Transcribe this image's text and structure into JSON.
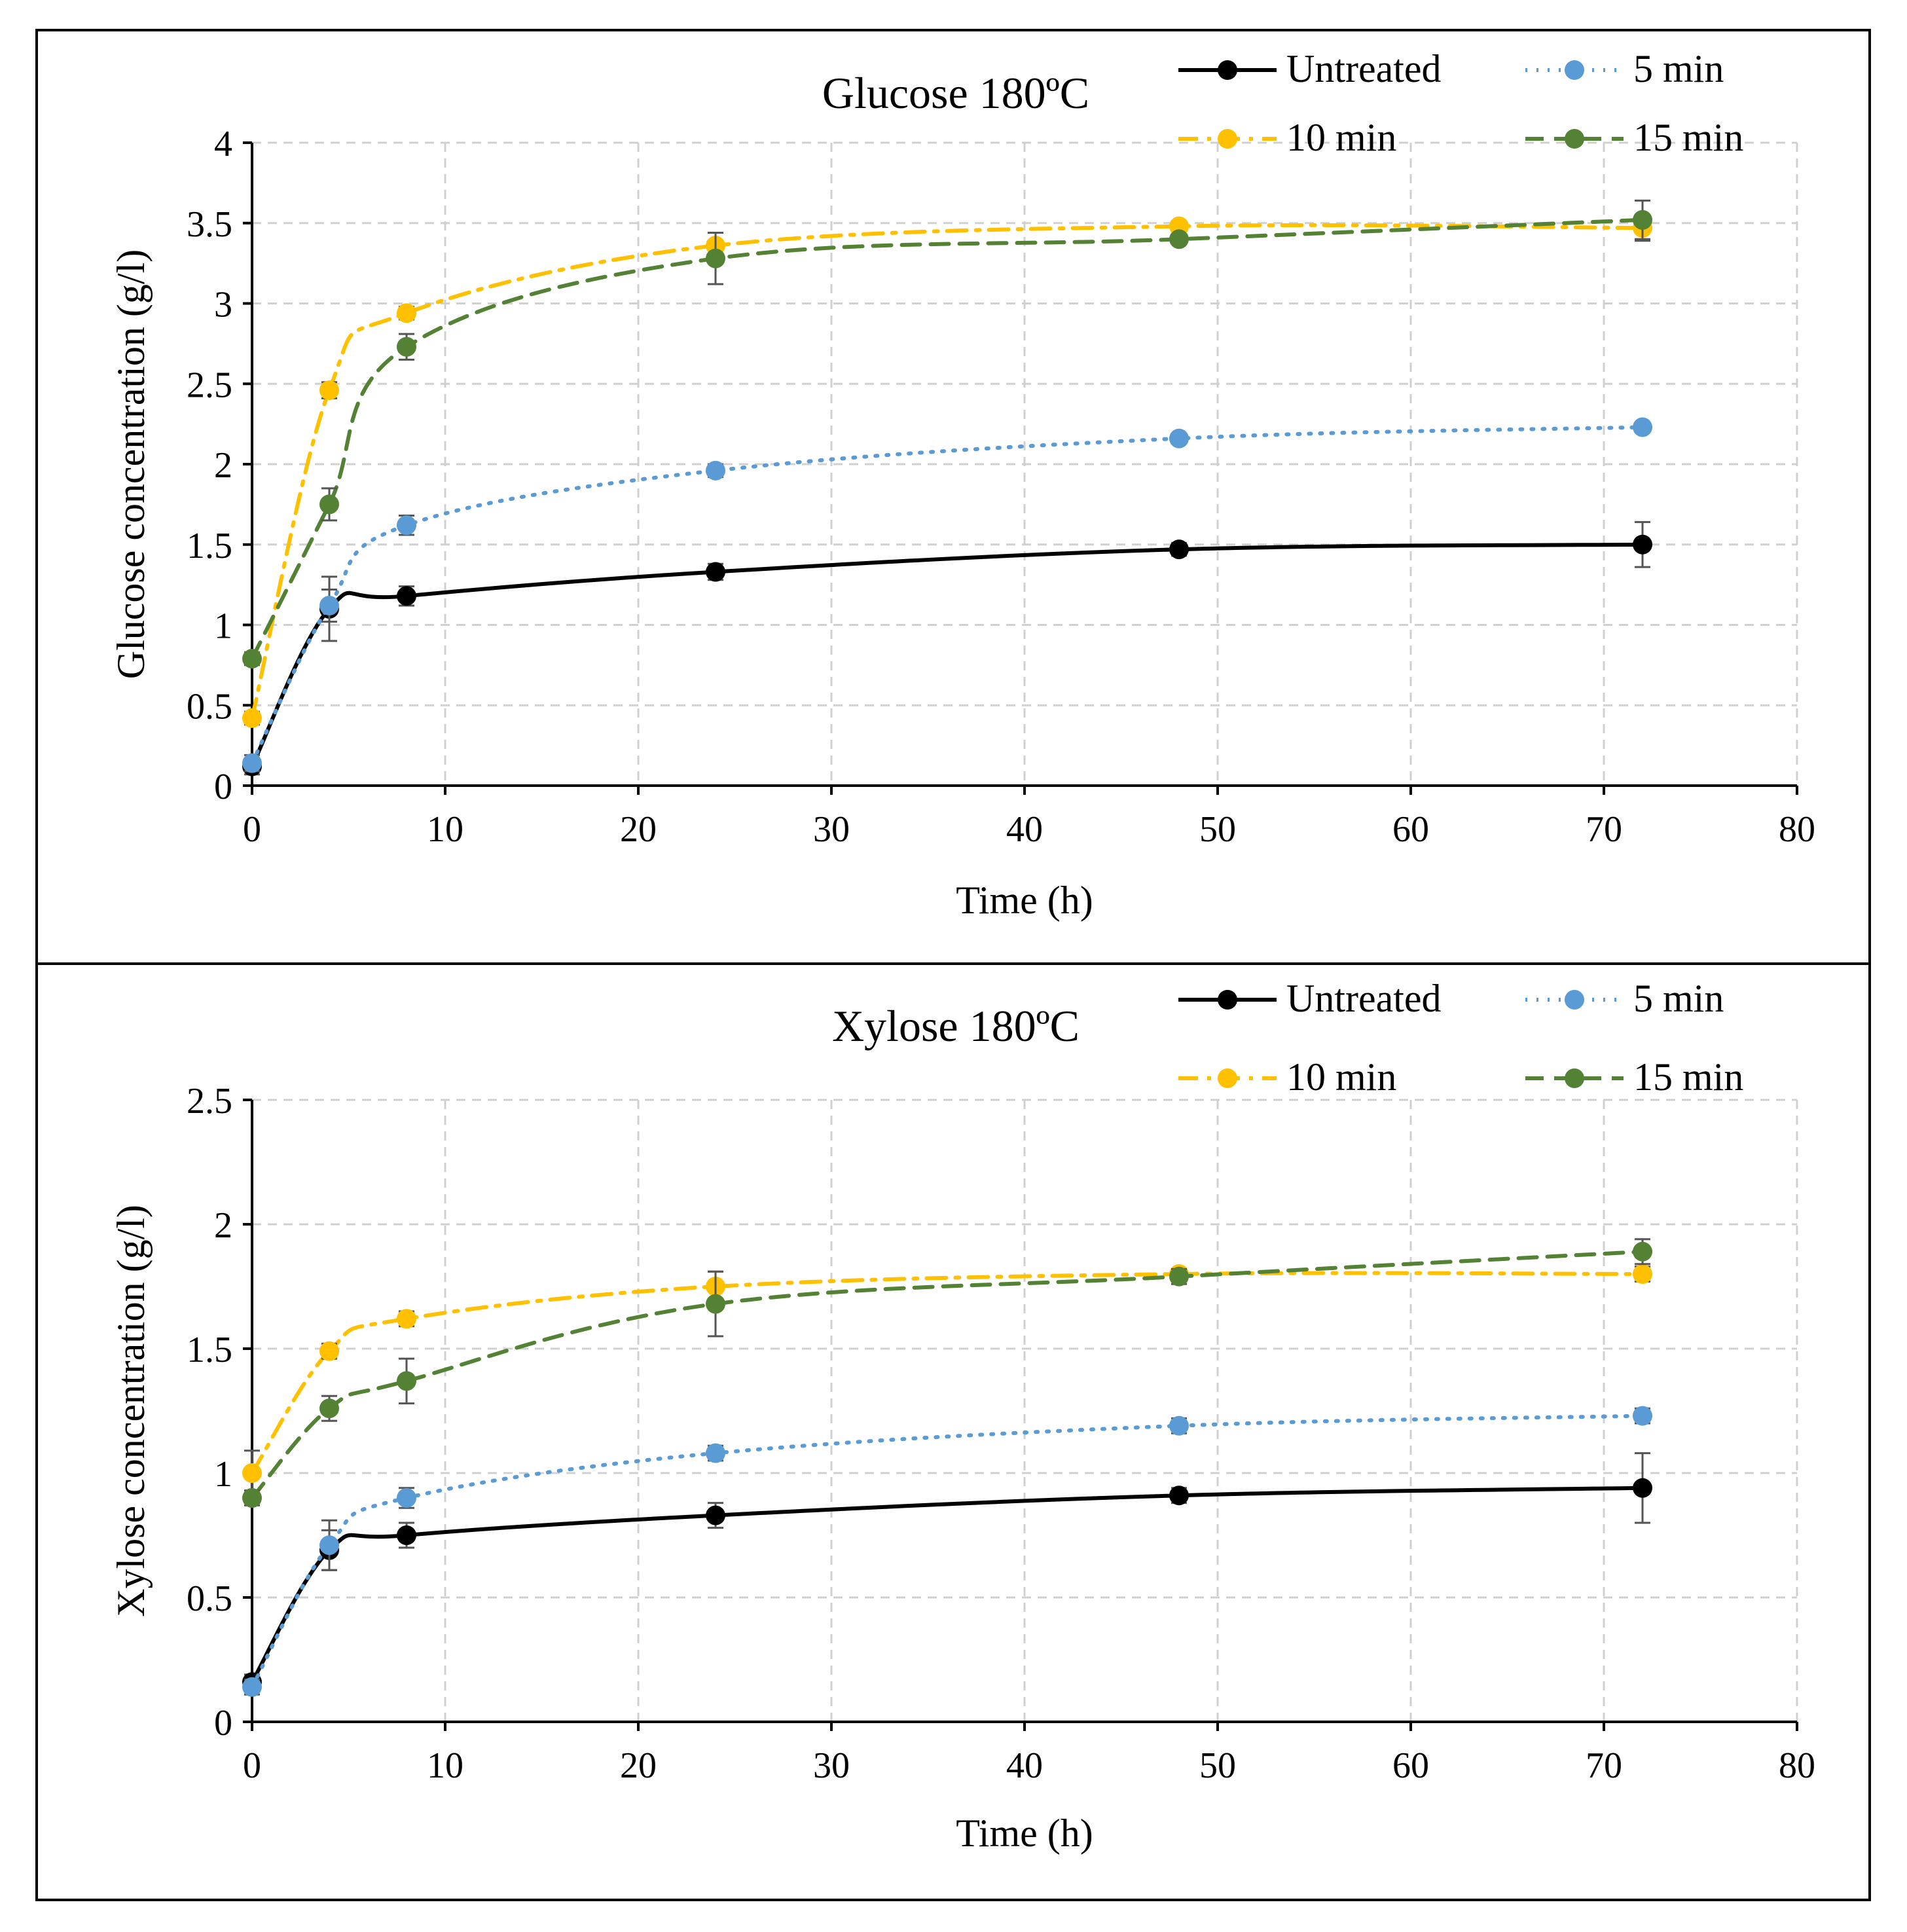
{
  "colors": {
    "untreated": "#000000",
    "min5": "#5B9BD5",
    "min10": "#FFC000",
    "min15": "#548235",
    "grid": "#D0D0D0",
    "axis": "#000000"
  },
  "legend_labels": [
    "Untreated",
    "5 min",
    "10 min",
    "15 min"
  ],
  "chart_data": [
    {
      "type": "line",
      "title": "Glucose 180ºC",
      "xlabel": "Time (h)",
      "ylabel": "Glucose concentration (g/l)",
      "xlim": [
        0,
        80
      ],
      "ylim": [
        0,
        4
      ],
      "xticks": [
        0,
        10,
        20,
        30,
        40,
        50,
        60,
        70,
        80
      ],
      "yticks": [
        0,
        0.5,
        1,
        1.5,
        2,
        2.5,
        3,
        3.5,
        4
      ],
      "xtick_labels": [
        "0",
        "10",
        "20",
        "30",
        "40",
        "50",
        "60",
        "70",
        "80"
      ],
      "ytick_labels": [
        "0",
        "0.5",
        "1",
        "1.5",
        "2",
        "2.5",
        "3",
        "3.5",
        "4"
      ],
      "x": [
        0,
        4,
        8,
        24,
        48,
        72
      ],
      "grid": true,
      "legend": "top-right",
      "series": [
        {
          "name": "Untreated",
          "key": "untreated",
          "dash": "solid",
          "values": [
            0.12,
            1.1,
            1.18,
            1.33,
            1.47,
            1.5
          ],
          "errors": [
            0.05,
            0.2,
            0.06,
            0.05,
            0.04,
            0.14
          ]
        },
        {
          "name": "5 min",
          "key": "min5",
          "dash": "dot",
          "values": [
            0.14,
            1.12,
            1.62,
            1.96,
            2.16,
            2.23
          ],
          "errors": [
            0.05,
            0.1,
            0.06,
            0.04,
            0.03,
            0.03
          ]
        },
        {
          "name": "10 min",
          "key": "min10",
          "dash": "dashdot",
          "values": [
            0.42,
            2.46,
            2.94,
            3.36,
            3.48,
            3.47
          ],
          "errors": [
            0.04,
            0.05,
            0.04,
            0.08,
            0.03,
            0.08
          ]
        },
        {
          "name": "15 min",
          "key": "min15",
          "dash": "dash",
          "values": [
            0.79,
            1.75,
            2.73,
            3.28,
            3.4,
            3.52
          ],
          "errors": [
            0.04,
            0.1,
            0.08,
            0.16,
            0.03,
            0.12
          ]
        }
      ]
    },
    {
      "type": "line",
      "title": "Xylose 180ºC",
      "xlabel": "Time (h)",
      "ylabel": "Xylose concentration (g/l)",
      "xlim": [
        0,
        80
      ],
      "ylim": [
        0,
        2.5
      ],
      "xticks": [
        0,
        10,
        20,
        30,
        40,
        50,
        60,
        70,
        80
      ],
      "yticks": [
        0,
        0.5,
        1,
        1.5,
        2,
        2.5
      ],
      "xtick_labels": [
        "0",
        "10",
        "20",
        "30",
        "40",
        "50",
        "60",
        "70",
        "80"
      ],
      "ytick_labels": [
        "0",
        "0.5",
        "1",
        "1.5",
        "2",
        "2.5"
      ],
      "x": [
        0,
        4,
        8,
        24,
        48,
        72
      ],
      "grid": true,
      "legend": "top-right",
      "series": [
        {
          "name": "Untreated",
          "key": "untreated",
          "dash": "solid",
          "values": [
            0.16,
            0.69,
            0.75,
            0.83,
            0.91,
            0.94
          ],
          "errors": [
            0.03,
            0.08,
            0.05,
            0.05,
            0.03,
            0.14
          ]
        },
        {
          "name": "5 min",
          "key": "min5",
          "dash": "dot",
          "values": [
            0.14,
            0.71,
            0.9,
            1.08,
            1.19,
            1.23
          ],
          "errors": [
            0.03,
            0.1,
            0.04,
            0.03,
            0.03,
            0.03
          ]
        },
        {
          "name": "10 min",
          "key": "min10",
          "dash": "dashdot",
          "values": [
            1.0,
            1.49,
            1.62,
            1.75,
            1.8,
            1.8
          ],
          "errors": [
            0.09,
            0.03,
            0.03,
            0.06,
            0.02,
            0.03
          ]
        },
        {
          "name": "15 min",
          "key": "min15",
          "dash": "dash",
          "values": [
            0.9,
            1.26,
            1.37,
            1.68,
            1.79,
            1.89
          ],
          "errors": [
            0.03,
            0.05,
            0.09,
            0.13,
            0.03,
            0.05
          ]
        }
      ]
    }
  ]
}
